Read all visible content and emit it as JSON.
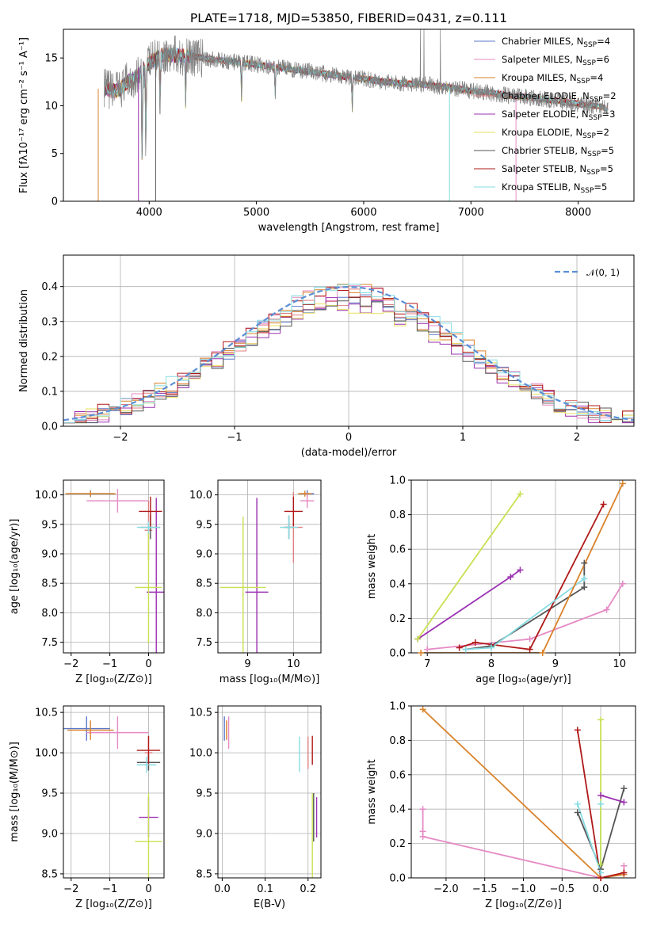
{
  "figure": {
    "title": "PLATE=1718, MJD=53850, FIBERID=0431, z=0.111"
  },
  "colors": {
    "Chabrier MILES": "#5b78c8",
    "Salpeter MILES": "#e58ac4",
    "Kroupa MILES": "#d9822b",
    "Chabrier ELODIE": "#e08080",
    "Salpeter ELODIE": "#9b30b0",
    "Kroupa ELODIE": "#e8e060",
    "Chabrier STELIB": "#555555",
    "Salpeter STELIB": "#b01818",
    "Kroupa STELIB": "#86dce2",
    "data": "#808080",
    "normal": "#5b8fd6"
  },
  "chart_data": [
    {
      "id": "spectrum",
      "type": "line",
      "title": "PLATE=1718, MJD=53850, FIBERID=0431, z=0.111",
      "xlabel": "wavelength [Angstrom, rest frame]",
      "ylabel": "Flux [fλ10⁻¹⁷ erg cm⁻² s⁻¹ A⁻¹]",
      "xlim": [
        3200,
        8520
      ],
      "ylim": [
        0,
        18
      ],
      "xticks": [
        4000,
        5000,
        6000,
        7000,
        8000
      ],
      "yticks": [
        0,
        5,
        10,
        15
      ],
      "grid": false,
      "legend_position": "right",
      "legend": [
        {
          "label": "Chabrier MILES, N",
          "sub": "SSP",
          "tail": "=4",
          "color": "#5b78c8"
        },
        {
          "label": "Salpeter MILES, N",
          "sub": "SSP",
          "tail": "=6",
          "color": "#e58ac4"
        },
        {
          "label": "Kroupa MILES, N",
          "sub": "SSP",
          "tail": "=4",
          "color": "#d9822b"
        },
        {
          "label": "Chabrier ELODIE, N",
          "sub": "SSP",
          "tail": "=2",
          "color": "#e08080"
        },
        {
          "label": "Salpeter ELODIE, N",
          "sub": "SSP",
          "tail": "=3",
          "color": "#9b30b0"
        },
        {
          "label": "Kroupa ELODIE, N",
          "sub": "SSP",
          "tail": "=2",
          "color": "#e8e060"
        },
        {
          "label": "Chabrier STELIB, N",
          "sub": "SSP",
          "tail": "=5",
          "color": "#555555"
        },
        {
          "label": "Salpeter STELIB, N",
          "sub": "SSP",
          "tail": "=5",
          "color": "#b01818"
        },
        {
          "label": "Kroupa STELIB, N",
          "sub": "SSP",
          "tail": "=5",
          "color": "#86dce2"
        }
      ],
      "continuum": {
        "x": [
          3580,
          3700,
          3800,
          3900,
          4000,
          4100,
          4200,
          4400,
          4600,
          4800,
          5000,
          5200,
          5400,
          5600,
          5800,
          6000,
          6200,
          6400,
          6600,
          6800,
          7000,
          7200,
          7400,
          7600,
          7800,
          8000,
          8200,
          8280
        ],
        "y": [
          11.8,
          11.5,
          12.5,
          13.2,
          14.5,
          15.3,
          15.3,
          15.2,
          14.8,
          14.6,
          14.3,
          14.0,
          13.7,
          13.4,
          13.1,
          12.8,
          12.5,
          12.3,
          12.2,
          11.9,
          11.6,
          11.3,
          11.0,
          10.8,
          10.5,
          10.2,
          9.9,
          9.7
        ]
      },
      "absorption_lines": [
        {
          "x": 3934,
          "depth": 10.5
        },
        {
          "x": 3969,
          "depth": 8.5
        },
        {
          "x": 4102,
          "depth": 6.0
        },
        {
          "x": 4340,
          "depth": 5.0
        },
        {
          "x": 4861,
          "depth": 4.0
        },
        {
          "x": 5175,
          "depth": 3.0
        },
        {
          "x": 5893,
          "depth": 3.5
        }
      ],
      "emission_spikes": [
        {
          "x": 6530,
          "peak": 18
        },
        {
          "x": 6563,
          "peak": 18
        },
        {
          "x": 6716,
          "peak": 18
        }
      ],
      "dropouts": [
        {
          "x": 3525,
          "y": 0
        },
        {
          "x": 3900,
          "y": 0
        },
        {
          "x": 4060,
          "y": 0
        },
        {
          "x": 6800,
          "y": 0
        },
        {
          "x": 7420,
          "y": 0
        }
      ]
    },
    {
      "id": "residuals",
      "type": "histogram",
      "xlabel": "(data-model)/error",
      "ylabel": "Normed distribution",
      "xlim": [
        -2.5,
        2.5
      ],
      "ylim": [
        0,
        0.49
      ],
      "xticks": [
        -2,
        -1,
        0,
        1,
        2
      ],
      "yticks": [
        0.0,
        0.1,
        0.2,
        0.3,
        0.4
      ],
      "grid": true,
      "legend_position": "top-right",
      "legend": [
        {
          "label": "𝒩(0, 1)",
          "color": "#5b8fd6",
          "style": "dashed"
        }
      ],
      "bin_width": 0.1,
      "bin_start": -2.5,
      "reference_curve": {
        "name": "𝒩(0, 1)",
        "mean": 0,
        "sigma": 1
      },
      "series_colors": [
        "#5b78c8",
        "#e58ac4",
        "#d9822b",
        "#e08080",
        "#9b30b0",
        "#e8e060",
        "#555555",
        "#b01818",
        "#86dce2"
      ]
    },
    {
      "id": "age_vs_Z",
      "type": "errorbar",
      "xlabel": "Z [log₁₀(Z/Z⊙)]",
      "ylabel": "age  [log₁₀(age/yr)]",
      "xlim": [
        -2.2,
        0.4
      ],
      "ylim": [
        7.32,
        10.25
      ],
      "xticks": [
        -2,
        -1,
        0
      ],
      "yticks": [
        7.5,
        8.0,
        8.5,
        9.0,
        9.5,
        10.0
      ],
      "grid": true,
      "points": [
        {
          "x": -1.5,
          "y": 10.02,
          "xerr": 0.6,
          "yerr": 0.06,
          "color": "#5b78c8"
        },
        {
          "x": -0.8,
          "y": 9.9,
          "xerr": 0.8,
          "yerr": 0.2,
          "color": "#e58ac4"
        },
        {
          "x": -1.5,
          "y": 10.02,
          "xerr": 0.65,
          "yerr": 0.05,
          "color": "#d9822b"
        },
        {
          "x": 0.0,
          "y": 9.4,
          "xerr": 0.1,
          "yerr": 0.5,
          "color": "#e08080"
        },
        {
          "x": 0.2,
          "y": 8.35,
          "xerr": 0.25,
          "yerr": 1.6,
          "color": "#9b30b0"
        },
        {
          "x": 0.0,
          "y": 8.43,
          "xerr": 0.35,
          "yerr": 0.95,
          "color": "#c8e050"
        },
        {
          "x": 0.05,
          "y": 9.45,
          "xerr": 0.25,
          "yerr": 0.2,
          "color": "#555555"
        },
        {
          "x": 0.05,
          "y": 9.72,
          "xerr": 0.3,
          "yerr": 0.25,
          "color": "#b01818"
        },
        {
          "x": 0.0,
          "y": 9.45,
          "xerr": 0.3,
          "yerr": 0.1,
          "color": "#86dce2"
        }
      ]
    },
    {
      "id": "age_vs_mass",
      "type": "errorbar",
      "xlabel": "mass [log₁₀(M/M⊙)]",
      "ylabel": "",
      "xlim": [
        8.35,
        10.6
      ],
      "ylim": [
        7.32,
        10.25
      ],
      "xticks": [
        9,
        10
      ],
      "yticks": [
        7.5,
        8.0,
        8.5,
        9.0,
        9.5,
        10.0
      ],
      "grid": true,
      "points": [
        {
          "x": 10.3,
          "y": 10.02,
          "xerr": 0.15,
          "yerr": 0.06,
          "color": "#5b78c8"
        },
        {
          "x": 10.3,
          "y": 9.9,
          "xerr": 0.15,
          "yerr": 0.12,
          "color": "#e58ac4"
        },
        {
          "x": 10.25,
          "y": 10.02,
          "xerr": 0.15,
          "yerr": 0.05,
          "color": "#d9822b"
        },
        {
          "x": 10.0,
          "y": 9.45,
          "xerr": 0.2,
          "yerr": 0.6,
          "color": "#e08080"
        },
        {
          "x": 9.2,
          "y": 8.35,
          "xerr": 0.25,
          "yerr": 1.6,
          "color": "#9b30b0"
        },
        {
          "x": 8.9,
          "y": 8.43,
          "xerr": 0.5,
          "yerr": 1.2,
          "color": "#c8e050"
        },
        {
          "x": 9.9,
          "y": 9.45,
          "xerr": 0.1,
          "yerr": 0.2,
          "color": "#555555"
        },
        {
          "x": 10.0,
          "y": 9.72,
          "xerr": 0.2,
          "yerr": 0.25,
          "color": "#b01818"
        },
        {
          "x": 9.9,
          "y": 9.45,
          "xerr": 0.2,
          "yerr": 0.2,
          "color": "#86dce2"
        }
      ]
    },
    {
      "id": "weight_vs_age",
      "type": "line",
      "xlabel": "age  [log₁₀(age/yr)]",
      "ylabel": "mass weight",
      "xlim": [
        6.75,
        10.25
      ],
      "ylim": [
        0,
        1
      ],
      "xticks": [
        7,
        8,
        9,
        10
      ],
      "yticks": [
        0.0,
        0.2,
        0.4,
        0.6,
        0.8,
        1.0
      ],
      "grid": true,
      "series": [
        {
          "color": "#e58ac4",
          "x": [
            7.0,
            8.6,
            9.8,
            10.05
          ],
          "y": [
            0.02,
            0.08,
            0.25,
            0.4
          ]
        },
        {
          "color": "#9b30b0",
          "x": [
            6.85,
            8.3,
            8.45
          ],
          "y": [
            0.08,
            0.44,
            0.48
          ]
        },
        {
          "color": "#c8e050",
          "x": [
            6.85,
            8.45
          ],
          "y": [
            0.08,
            0.92
          ]
        },
        {
          "color": "#555555",
          "x": [
            7.6,
            8.0,
            9.45,
            9.45
          ],
          "y": [
            0.02,
            0.04,
            0.38,
            0.52
          ]
        },
        {
          "color": "#b01818",
          "x": [
            7.5,
            7.75,
            8.6,
            9.75
          ],
          "y": [
            0.03,
            0.06,
            0.02,
            0.86
          ]
        },
        {
          "color": "#86dce2",
          "x": [
            7.6,
            8.0,
            9.45
          ],
          "y": [
            0.02,
            0.03,
            0.43
          ]
        },
        {
          "color": "#d9822b",
          "x": [
            6.9,
            8.8,
            10.05
          ],
          "y": [
            0.0,
            0.0,
            0.98
          ]
        }
      ]
    },
    {
      "id": "mass_vs_Z",
      "type": "errorbar",
      "xlabel": "Z [log₁₀(Z/Z⊙)]",
      "ylabel": "mass [log₁₀(M/M⊙)]",
      "xlim": [
        -2.2,
        0.4
      ],
      "ylim": [
        8.45,
        10.58
      ],
      "xticks": [
        -2,
        -1,
        0
      ],
      "yticks": [
        8.5,
        9.0,
        9.5,
        10.0,
        10.5
      ],
      "grid": true,
      "points": [
        {
          "x": -1.6,
          "y": 10.3,
          "xerr": 0.6,
          "yerr": 0.15,
          "color": "#5b78c8"
        },
        {
          "x": -0.8,
          "y": 10.25,
          "xerr": 0.8,
          "yerr": 0.2,
          "color": "#e58ac4"
        },
        {
          "x": -1.5,
          "y": 10.28,
          "xerr": 0.6,
          "yerr": 0.12,
          "color": "#d9822b"
        },
        {
          "x": 0.0,
          "y": 10.0,
          "xerr": 0.1,
          "yerr": 0.2,
          "color": "#e08080"
        },
        {
          "x": 0.0,
          "y": 9.2,
          "xerr": 0.25,
          "yerr": 0.25,
          "color": "#9b30b0"
        },
        {
          "x": 0.0,
          "y": 8.9,
          "xerr": 0.35,
          "yerr": 0.6,
          "color": "#c8e050"
        },
        {
          "x": 0.0,
          "y": 9.88,
          "xerr": 0.3,
          "yerr": 0.1,
          "color": "#555555"
        },
        {
          "x": 0.0,
          "y": 10.03,
          "xerr": 0.3,
          "yerr": 0.18,
          "color": "#b01818"
        },
        {
          "x": -0.05,
          "y": 9.85,
          "xerr": 0.25,
          "yerr": 0.1,
          "color": "#86dce2"
        }
      ]
    },
    {
      "id": "mass_vs_ebv",
      "type": "errorbar",
      "xlabel": "E(B-V)",
      "ylabel": "",
      "xlim": [
        -0.01,
        0.23
      ],
      "ylim": [
        8.45,
        10.58
      ],
      "xticks": [
        0.0,
        0.1,
        0.2
      ],
      "yticks": [
        8.5,
        9.0,
        9.5,
        10.0,
        10.5
      ],
      "grid": true,
      "points": [
        {
          "x": 0.005,
          "y": 10.3,
          "xerr": 0,
          "yerr": 0.15,
          "color": "#5b78c8"
        },
        {
          "x": 0.015,
          "y": 10.25,
          "xerr": 0,
          "yerr": 0.2,
          "color": "#e58ac4"
        },
        {
          "x": 0.01,
          "y": 10.28,
          "xerr": 0,
          "yerr": 0.12,
          "color": "#d9822b"
        },
        {
          "x": 0.2,
          "y": 10.0,
          "xerr": 0,
          "yerr": 0.2,
          "color": "#e08080"
        },
        {
          "x": 0.22,
          "y": 9.2,
          "xerr": 0,
          "yerr": 0.25,
          "color": "#9b30b0"
        },
        {
          "x": 0.21,
          "y": 8.9,
          "xerr": 0,
          "yerr": 0.6,
          "color": "#c8e050"
        },
        {
          "x": 0.213,
          "y": 9.2,
          "xerr": 0,
          "yerr": 0.3,
          "color": "#555555"
        },
        {
          "x": 0.21,
          "y": 10.03,
          "xerr": 0,
          "yerr": 0.18,
          "color": "#b01818"
        },
        {
          "x": 0.18,
          "y": 9.98,
          "xerr": 0,
          "yerr": 0.22,
          "color": "#86dce2"
        }
      ]
    },
    {
      "id": "weight_vs_Z",
      "type": "line",
      "xlabel": "Z [log₁₀(Z/Z⊙)]",
      "ylabel": "mass weight",
      "xlim": [
        -2.45,
        0.45
      ],
      "ylim": [
        0,
        1
      ],
      "xticks": [
        -2.0,
        -1.5,
        -1.0,
        -0.5,
        0.0
      ],
      "yticks": [
        0.0,
        0.2,
        0.4,
        0.6,
        0.8,
        1.0
      ],
      "grid": true,
      "series": [
        {
          "color": "#e58ac4",
          "x": [
            -2.3,
            -2.3,
            -2.3,
            0.0,
            0.3,
            0.3
          ],
          "y": [
            0.4,
            0.27,
            0.24,
            0.0,
            0.02,
            0.07
          ]
        },
        {
          "color": "#d9822b",
          "x": [
            -2.3,
            0.0,
            0.3
          ],
          "y": [
            0.98,
            0.0,
            0.02
          ]
        },
        {
          "color": "#b01818",
          "x": [
            -0.3,
            0.0,
            0.3
          ],
          "y": [
            0.86,
            0.0,
            0.03
          ]
        },
        {
          "color": "#555555",
          "x": [
            -0.3,
            0.0,
            0.3
          ],
          "y": [
            0.38,
            0.05,
            0.52
          ]
        },
        {
          "color": "#9b30b0",
          "x": [
            0.0,
            0.3
          ],
          "y": [
            0.48,
            0.44
          ]
        },
        {
          "color": "#86dce2",
          "x": [
            -0.3,
            0.0,
            0.0
          ],
          "y": [
            0.43,
            0.03,
            0.43
          ]
        },
        {
          "color": "#c8e050",
          "x": [
            0.0,
            0.0
          ],
          "y": [
            0.92,
            0.08
          ]
        }
      ]
    }
  ]
}
